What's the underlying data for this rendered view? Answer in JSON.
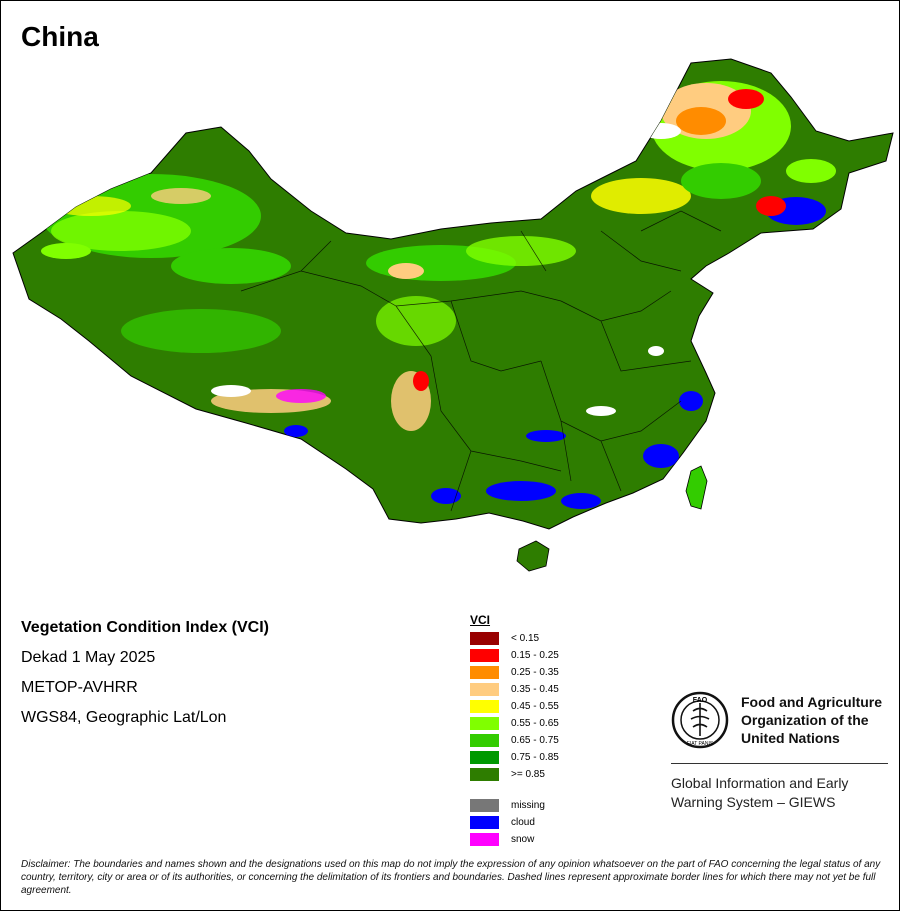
{
  "map": {
    "title": "China",
    "info": {
      "index_name": "Vegetation Condition Index (VCI)",
      "period": "Dekad 1 May 2025",
      "sensor": "METOP-AVHRR",
      "projection": "WGS84, Geographic Lat/Lon"
    },
    "legend": {
      "title": "VCI",
      "classes": [
        {
          "label": "< 0.15",
          "color": "#990000"
        },
        {
          "label": "0.15 - 0.25",
          "color": "#ff0000"
        },
        {
          "label": "0.25 - 0.35",
          "color": "#ff8c00"
        },
        {
          "label": "0.35 - 0.45",
          "color": "#ffcc80"
        },
        {
          "label": "0.45 - 0.55",
          "color": "#ffff00"
        },
        {
          "label": "0.55 - 0.65",
          "color": "#80ff00"
        },
        {
          "label": "0.65 - 0.75",
          "color": "#33cc00"
        },
        {
          "label": "0.75 - 0.85",
          "color": "#009900"
        },
        {
          "label": ">= 0.85",
          "color": "#2e7d00"
        }
      ],
      "special": [
        {
          "label": "missing",
          "color": "#777777"
        },
        {
          "label": "cloud",
          "color": "#0000ff"
        },
        {
          "label": "snow",
          "color": "#ff00ff"
        }
      ]
    }
  },
  "org": {
    "logo_text": "FAO",
    "logo_motto": "FIAT PANIS",
    "name_line1": "Food and Agriculture",
    "name_line2": "Organization of the",
    "name_line3": "United Nations",
    "system_line1": "Global Information and Early",
    "system_line2": "Warning System – GIEWS"
  },
  "disclaimer": "Disclaimer: The boundaries and names shown and the designations used on this map do not imply the expression of any opinion whatsoever on the part of FAO concerning the legal status of any country, territory, city or area or of its authorities, or concerning the delimitation of its frontiers and boundaries. Dashed lines represent approximate border lines for which there may not yet be full agreement."
}
